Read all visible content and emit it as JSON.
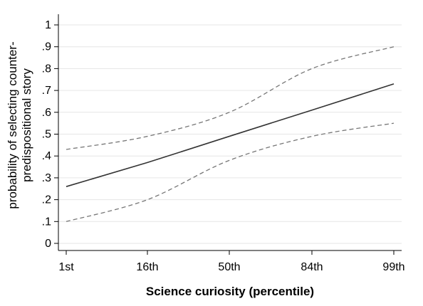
{
  "chart_data": {
    "type": "line",
    "title": "",
    "xlabel": "Science curiosity (percentile)",
    "ylabel": [
      "probability of selecting counter-",
      "predispositional story"
    ],
    "categories": [
      "1st",
      "16th",
      "50th",
      "84th",
      "99th"
    ],
    "x": [
      0,
      1,
      2,
      3,
      4
    ],
    "ylim": [
      0,
      1
    ],
    "yticks": [
      0,
      0.1,
      0.2,
      0.3,
      0.4,
      0.5,
      0.6,
      0.7,
      0.8,
      0.9,
      1
    ],
    "ytick_labels": [
      "0",
      ".1",
      ".2",
      ".3",
      ".4",
      ".5",
      ".6",
      ".7",
      ".8",
      ".9",
      "1"
    ],
    "grid": true,
    "series": [
      {
        "role": "estimate",
        "style": "solid",
        "color": "#333333",
        "values": [
          0.26,
          0.37,
          0.49,
          0.61,
          0.73
        ]
      },
      {
        "role": "upper-ci",
        "style": "dashed",
        "color": "#777777",
        "values": [
          0.43,
          0.49,
          0.6,
          0.8,
          0.9
        ]
      },
      {
        "role": "lower-ci",
        "style": "dashed",
        "color": "#777777",
        "values": [
          0.1,
          0.2,
          0.38,
          0.49,
          0.55
        ]
      }
    ]
  }
}
